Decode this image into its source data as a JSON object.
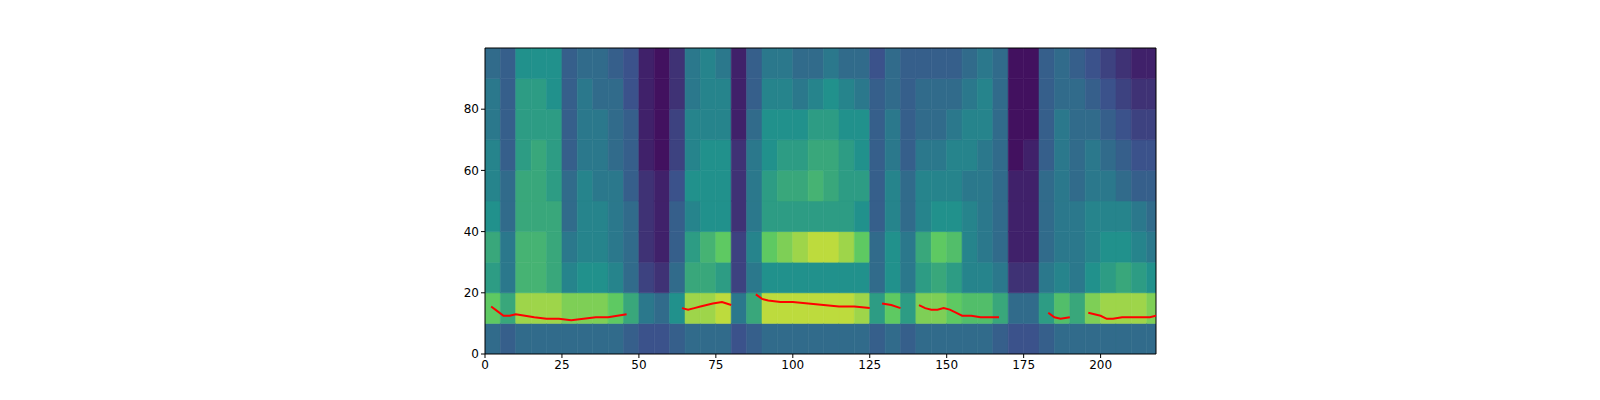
{
  "chart_data": {
    "type": "heatmap",
    "xlim": [
      0,
      218
    ],
    "ylim": [
      0,
      100
    ],
    "xticks": [
      0,
      25,
      50,
      75,
      100,
      125,
      150,
      175,
      200
    ],
    "yticks": [
      0,
      20,
      40,
      60,
      80
    ],
    "grid": false,
    "cell_x_step": 5,
    "cell_y_step": 10,
    "cell_range": [
      0,
      1
    ],
    "cells": [
      [
        0.35,
        0.75,
        0.55,
        0.6,
        0.5,
        0.45,
        0.45,
        0.4,
        0.4,
        0.35
      ],
      [
        0.3,
        0.6,
        0.4,
        0.4,
        0.35,
        0.35,
        0.3,
        0.3,
        0.3,
        0.3
      ],
      [
        0.35,
        0.85,
        0.65,
        0.65,
        0.6,
        0.6,
        0.55,
        0.55,
        0.55,
        0.5
      ],
      [
        0.35,
        0.85,
        0.65,
        0.65,
        0.6,
        0.6,
        0.6,
        0.55,
        0.55,
        0.5
      ],
      [
        0.35,
        0.85,
        0.6,
        0.6,
        0.6,
        0.55,
        0.55,
        0.55,
        0.5,
        0.5
      ],
      [
        0.35,
        0.8,
        0.45,
        0.4,
        0.35,
        0.35,
        0.3,
        0.3,
        0.3,
        0.3
      ],
      [
        0.35,
        0.8,
        0.5,
        0.45,
        0.45,
        0.45,
        0.4,
        0.4,
        0.4,
        0.35
      ],
      [
        0.35,
        0.8,
        0.5,
        0.45,
        0.45,
        0.4,
        0.4,
        0.4,
        0.35,
        0.35
      ],
      [
        0.35,
        0.75,
        0.45,
        0.4,
        0.4,
        0.4,
        0.35,
        0.35,
        0.35,
        0.3
      ],
      [
        0.3,
        0.6,
        0.35,
        0.35,
        0.35,
        0.3,
        0.3,
        0.3,
        0.25,
        0.25
      ],
      [
        0.25,
        0.4,
        0.2,
        0.15,
        0.15,
        0.15,
        0.1,
        0.1,
        0.1,
        0.1
      ],
      [
        0.25,
        0.35,
        0.15,
        0.1,
        0.1,
        0.1,
        0.05,
        0.05,
        0.05,
        0.05
      ],
      [
        0.3,
        0.5,
        0.35,
        0.3,
        0.3,
        0.25,
        0.2,
        0.2,
        0.15,
        0.15
      ],
      [
        0.35,
        0.85,
        0.6,
        0.55,
        0.45,
        0.5,
        0.45,
        0.45,
        0.4,
        0.4
      ],
      [
        0.35,
        0.85,
        0.6,
        0.65,
        0.5,
        0.5,
        0.5,
        0.45,
        0.45,
        0.45
      ],
      [
        0.35,
        0.9,
        0.55,
        0.75,
        0.5,
        0.5,
        0.5,
        0.45,
        0.45,
        0.4
      ],
      [
        0.25,
        0.4,
        0.2,
        0.2,
        0.15,
        0.15,
        0.15,
        0.1,
        0.1,
        0.1
      ],
      [
        0.3,
        0.6,
        0.4,
        0.45,
        0.4,
        0.4,
        0.4,
        0.35,
        0.3,
        0.3
      ],
      [
        0.35,
        0.9,
        0.5,
        0.75,
        0.55,
        0.55,
        0.5,
        0.5,
        0.45,
        0.4
      ],
      [
        0.35,
        0.9,
        0.5,
        0.8,
        0.55,
        0.6,
        0.55,
        0.5,
        0.45,
        0.4
      ],
      [
        0.35,
        0.9,
        0.5,
        0.85,
        0.55,
        0.6,
        0.55,
        0.5,
        0.4,
        0.35
      ],
      [
        0.35,
        0.9,
        0.5,
        0.9,
        0.55,
        0.65,
        0.6,
        0.55,
        0.45,
        0.35
      ],
      [
        0.35,
        0.9,
        0.5,
        0.9,
        0.55,
        0.6,
        0.6,
        0.55,
        0.5,
        0.4
      ],
      [
        0.35,
        0.9,
        0.5,
        0.85,
        0.55,
        0.55,
        0.55,
        0.5,
        0.45,
        0.35
      ],
      [
        0.35,
        0.85,
        0.5,
        0.75,
        0.5,
        0.55,
        0.5,
        0.5,
        0.4,
        0.35
      ],
      [
        0.3,
        0.55,
        0.35,
        0.35,
        0.3,
        0.3,
        0.3,
        0.3,
        0.3,
        0.25
      ],
      [
        0.35,
        0.75,
        0.5,
        0.5,
        0.45,
        0.45,
        0.4,
        0.4,
        0.35,
        0.35
      ],
      [
        0.3,
        0.55,
        0.4,
        0.4,
        0.35,
        0.35,
        0.3,
        0.3,
        0.3,
        0.3
      ],
      [
        0.35,
        0.8,
        0.55,
        0.6,
        0.45,
        0.45,
        0.4,
        0.35,
        0.35,
        0.3
      ],
      [
        0.35,
        0.8,
        0.6,
        0.75,
        0.5,
        0.45,
        0.4,
        0.35,
        0.35,
        0.3
      ],
      [
        0.35,
        0.75,
        0.55,
        0.7,
        0.5,
        0.45,
        0.45,
        0.4,
        0.35,
        0.3
      ],
      [
        0.35,
        0.7,
        0.45,
        0.45,
        0.45,
        0.4,
        0.45,
        0.45,
        0.4,
        0.35
      ],
      [
        0.35,
        0.7,
        0.45,
        0.4,
        0.4,
        0.4,
        0.4,
        0.45,
        0.45,
        0.4
      ],
      [
        0.3,
        0.6,
        0.4,
        0.35,
        0.35,
        0.35,
        0.35,
        0.35,
        0.35,
        0.35
      ],
      [
        0.25,
        0.35,
        0.15,
        0.1,
        0.1,
        0.1,
        0.05,
        0.05,
        0.05,
        0.05
      ],
      [
        0.25,
        0.35,
        0.15,
        0.1,
        0.1,
        0.1,
        0.1,
        0.05,
        0.05,
        0.05
      ],
      [
        0.3,
        0.55,
        0.4,
        0.35,
        0.35,
        0.35,
        0.3,
        0.3,
        0.3,
        0.3
      ],
      [
        0.35,
        0.7,
        0.45,
        0.4,
        0.4,
        0.4,
        0.4,
        0.4,
        0.35,
        0.35
      ],
      [
        0.35,
        0.6,
        0.4,
        0.4,
        0.4,
        0.35,
        0.35,
        0.35,
        0.35,
        0.3
      ],
      [
        0.35,
        0.8,
        0.5,
        0.45,
        0.45,
        0.4,
        0.4,
        0.35,
        0.3,
        0.25
      ],
      [
        0.35,
        0.85,
        0.55,
        0.5,
        0.45,
        0.4,
        0.35,
        0.3,
        0.25,
        0.2
      ],
      [
        0.35,
        0.85,
        0.6,
        0.5,
        0.45,
        0.35,
        0.3,
        0.25,
        0.2,
        0.15
      ],
      [
        0.35,
        0.85,
        0.55,
        0.45,
        0.4,
        0.3,
        0.25,
        0.2,
        0.15,
        0.1
      ],
      [
        0.35,
        0.8,
        0.5,
        0.4,
        0.35,
        0.3,
        0.25,
        0.2,
        0.15,
        0.1
      ]
    ],
    "series": [
      {
        "type": "line",
        "color": "red",
        "x": [
          2,
          4,
          6,
          8,
          10,
          13,
          16,
          20,
          24,
          28,
          32,
          36,
          40,
          43,
          46,
          55,
          64,
          66,
          68,
          70,
          72,
          74,
          77,
          80,
          84,
          88,
          90,
          92,
          96,
          100,
          105,
          110,
          115,
          120,
          125,
          127,
          129,
          132,
          135,
          138,
          141,
          143,
          145,
          147,
          149,
          151,
          153,
          155,
          158,
          161,
          164,
          167,
          175,
          183,
          185,
          187,
          190,
          193,
          196,
          198,
          200,
          202,
          204,
          207,
          210,
          213,
          216,
          218
        ],
        "values": [
          15.5,
          14,
          12.5,
          12.5,
          13,
          12.5,
          12,
          11.5,
          11.5,
          11,
          11.5,
          12,
          12,
          12.5,
          13,
          null,
          15,
          14.5,
          15,
          15.5,
          16,
          16.5,
          17,
          16,
          null,
          19.5,
          18,
          17.5,
          17,
          17,
          16.5,
          16,
          15.5,
          15.5,
          15,
          null,
          16.5,
          16,
          15,
          null,
          16,
          15,
          14.5,
          14.5,
          15,
          14.5,
          13.5,
          12.5,
          12.5,
          12,
          12,
          12,
          null,
          13.5,
          12,
          11.5,
          12,
          null,
          13.5,
          13,
          12.5,
          11.5,
          11.5,
          12,
          12,
          12,
          12,
          12.5
        ]
      }
    ]
  }
}
